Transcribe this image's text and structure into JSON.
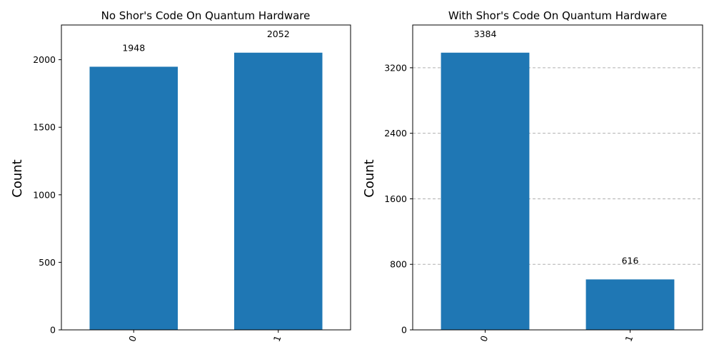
{
  "chart_data": [
    {
      "type": "bar",
      "title": "No Shor's Code On Quantum Hardware",
      "xlabel": "",
      "ylabel": "Count",
      "categories": [
        "0",
        "1"
      ],
      "values": [
        1948,
        2052
      ],
      "data_labels": [
        "1948",
        "2052"
      ],
      "yticks": [
        0,
        500,
        1000,
        1500,
        2000
      ],
      "ytick_labels": [
        "0",
        "500",
        "1000",
        "1500",
        "2000"
      ],
      "ylim": [
        0,
        2257
      ],
      "grid": false,
      "bar_color": "#1f77b4"
    },
    {
      "type": "bar",
      "title": "With Shor's Code On Quantum Hardware",
      "xlabel": "",
      "ylabel": "Count",
      "categories": [
        "0",
        "1"
      ],
      "values": [
        3384,
        616
      ],
      "data_labels": [
        "3384",
        "616"
      ],
      "yticks": [
        0,
        800,
        1600,
        2400,
        3200
      ],
      "ytick_labels": [
        "0",
        "800",
        "1600",
        "2400",
        "3200"
      ],
      "ylim": [
        0,
        3722
      ],
      "grid": true,
      "bar_color": "#1f77b4"
    }
  ]
}
